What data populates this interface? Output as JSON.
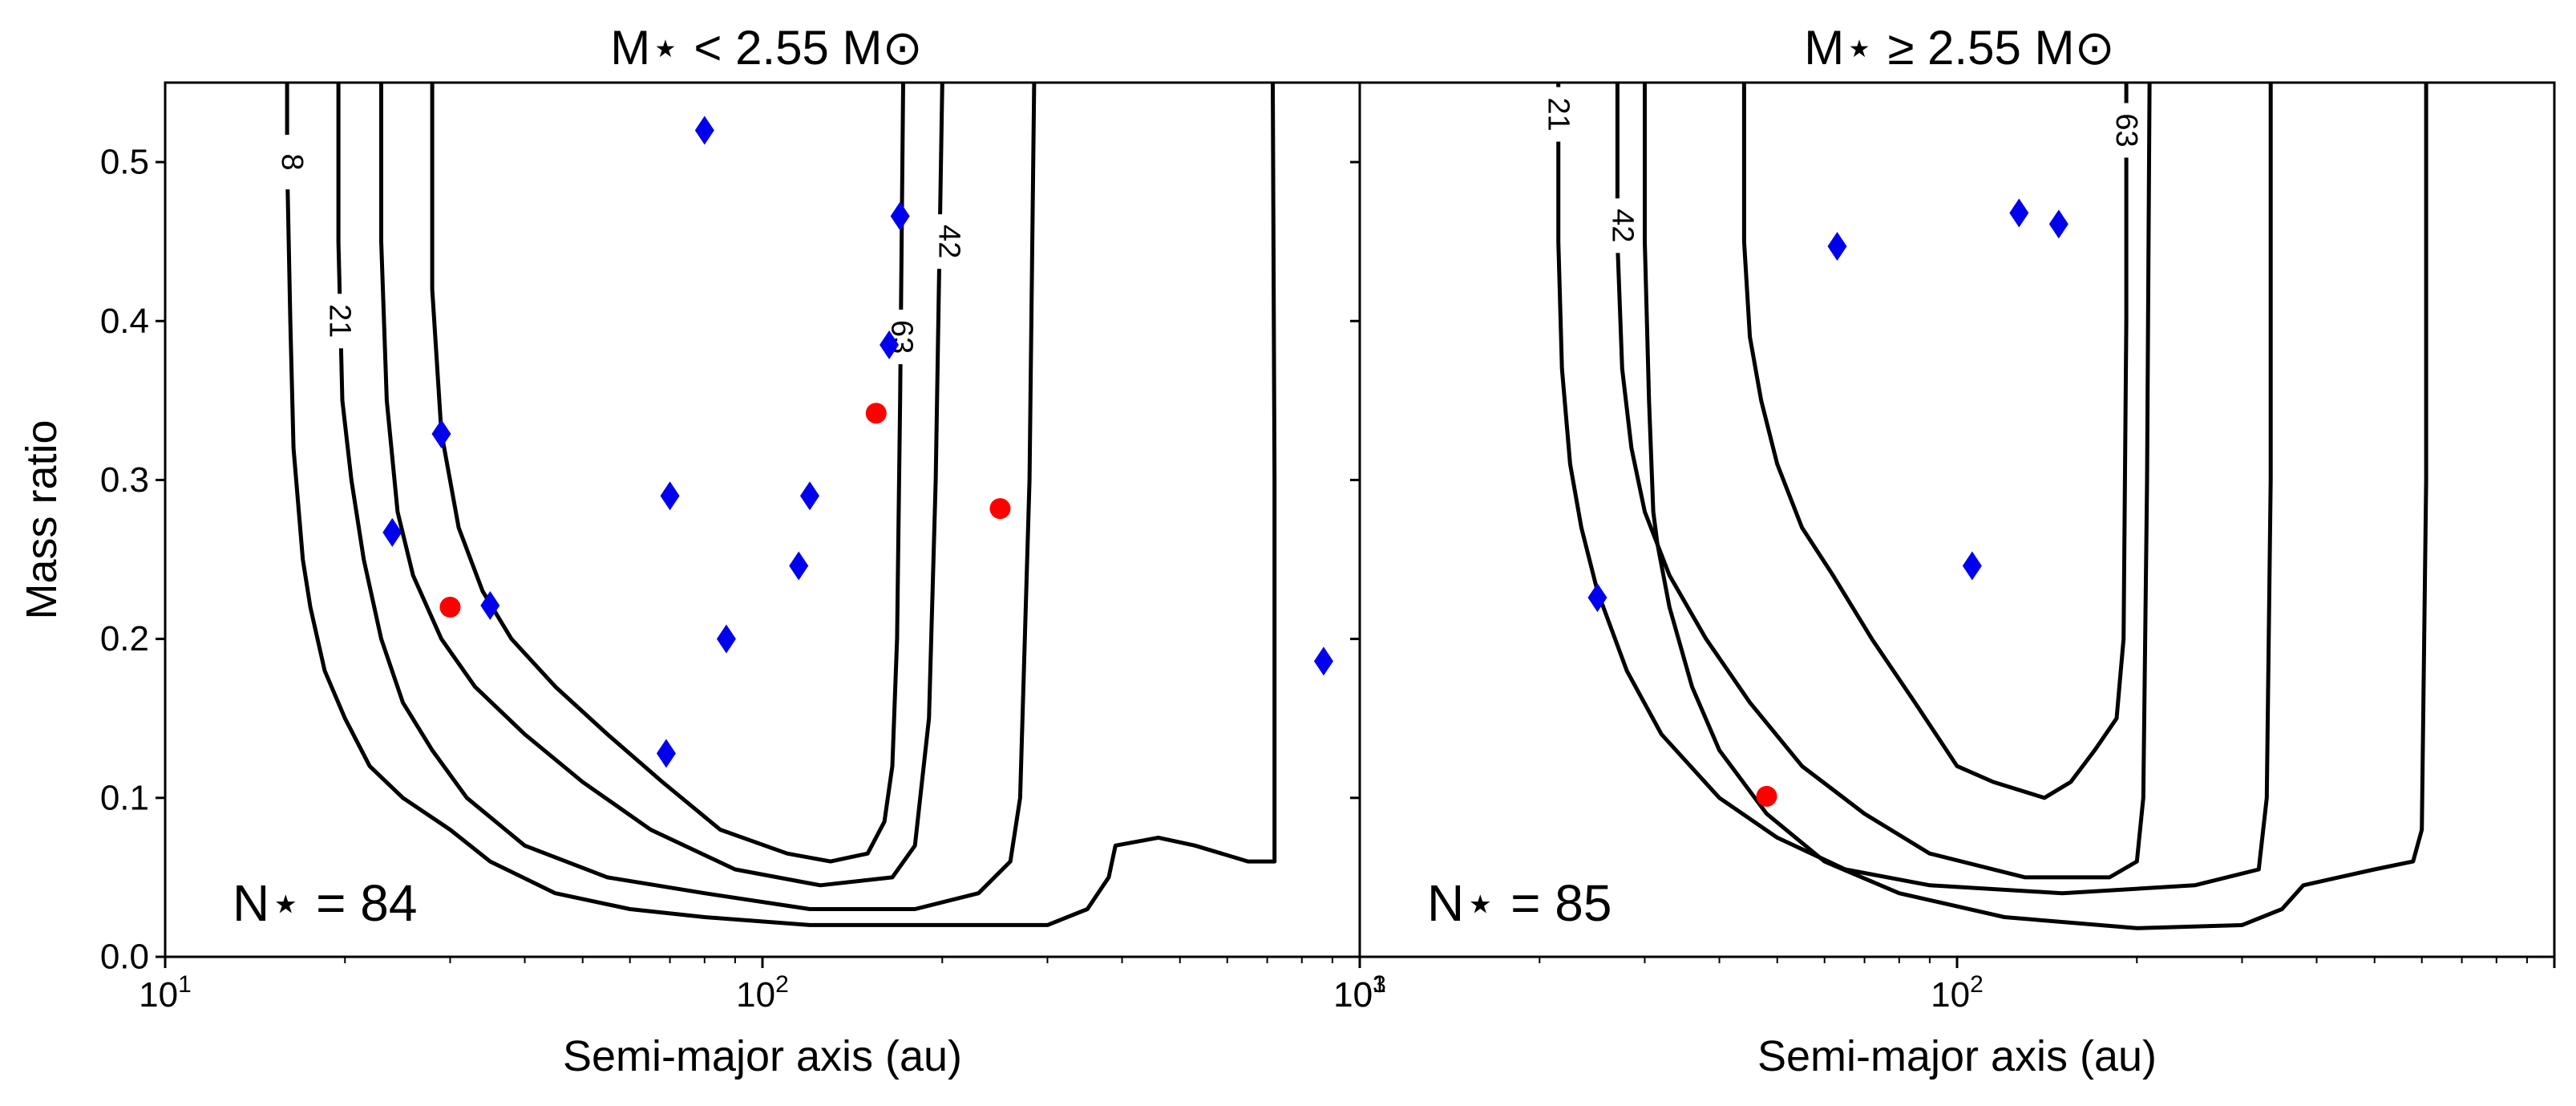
{
  "chart_data": [
    {
      "type": "scatter",
      "title": "M⋆ < 2.55 M⊙",
      "xlabel": "Semi-major axis (au)",
      "ylabel": "Mass ratio",
      "xscale": "log",
      "xlim": [
        10,
        1000
      ],
      "ylim": [
        0,
        0.55
      ],
      "xticks": [
        {
          "value": 10,
          "base": "10",
          "exp": "1"
        },
        {
          "value": 100,
          "base": "10",
          "exp": "2"
        },
        {
          "value": 1000,
          "base": "10",
          "exp": "3"
        }
      ],
      "yticks": [
        "0.0",
        "0.1",
        "0.2",
        "0.3",
        "0.4",
        "0.5"
      ],
      "annotation": "N⋆ = 84",
      "contour_labels": [
        "8",
        "21",
        "42",
        "63"
      ],
      "contours": [
        {
          "level": "8",
          "label_at": [
            16.3,
            0.5
          ],
          "points": [
            [
              16.0,
              0.55
            ],
            [
              16.0,
              0.5
            ],
            [
              16.2,
              0.4
            ],
            [
              16.4,
              0.32
            ],
            [
              17.0,
              0.25
            ],
            [
              17.5,
              0.22
            ],
            [
              18.5,
              0.18
            ],
            [
              20.0,
              0.15
            ],
            [
              22.0,
              0.12
            ],
            [
              25.0,
              0.1
            ],
            [
              30.0,
              0.08
            ],
            [
              35.0,
              0.06
            ],
            [
              45.0,
              0.04
            ],
            [
              60.0,
              0.03
            ],
            [
              80.0,
              0.025
            ],
            [
              120.0,
              0.02
            ],
            [
              200.0,
              0.02
            ],
            [
              300.0,
              0.02
            ],
            [
              350.0,
              0.03
            ],
            [
              380.0,
              0.05
            ],
            [
              390.0,
              0.07
            ],
            [
              460.0,
              0.075
            ],
            [
              530.0,
              0.07
            ],
            [
              650.0,
              0.06
            ],
            [
              720.0,
              0.06
            ],
            [
              720.0,
              0.3
            ],
            [
              715.0,
              0.55
            ]
          ]
        },
        {
          "level": "21",
          "label_at": [
            19.6,
            0.4
          ],
          "points": [
            [
              19.5,
              0.55
            ],
            [
              19.5,
              0.45
            ],
            [
              19.8,
              0.35
            ],
            [
              20.5,
              0.3
            ],
            [
              21.5,
              0.25
            ],
            [
              23.0,
              0.2
            ],
            [
              25.0,
              0.16
            ],
            [
              28.0,
              0.13
            ],
            [
              32.0,
              0.1
            ],
            [
              40.0,
              0.07
            ],
            [
              55.0,
              0.05
            ],
            [
              80.0,
              0.04
            ],
            [
              120.0,
              0.03
            ],
            [
              180.0,
              0.03
            ],
            [
              230.0,
              0.04
            ],
            [
              260.0,
              0.06
            ],
            [
              270.0,
              0.1
            ],
            [
              280.0,
              0.3
            ],
            [
              285.0,
              0.55
            ]
          ]
        },
        {
          "level": "42",
          "label_at": [
            205,
            0.45
          ],
          "points": [
            [
              23.0,
              0.55
            ],
            [
              23.0,
              0.45
            ],
            [
              23.5,
              0.35
            ],
            [
              24.5,
              0.28
            ],
            [
              26.0,
              0.24
            ],
            [
              29.0,
              0.2
            ],
            [
              33.0,
              0.17
            ],
            [
              40.0,
              0.14
            ],
            [
              50.0,
              0.11
            ],
            [
              65.0,
              0.08
            ],
            [
              90.0,
              0.055
            ],
            [
              125.0,
              0.045
            ],
            [
              165.0,
              0.05
            ],
            [
              180.0,
              0.07
            ],
            [
              190.0,
              0.15
            ],
            [
              195.0,
              0.3
            ],
            [
              200.0,
              0.55
            ]
          ]
        },
        {
          "level": "63",
          "label_at": [
            171,
            0.39
          ],
          "points": [
            [
              28.0,
              0.55
            ],
            [
              28.0,
              0.42
            ],
            [
              29.0,
              0.33
            ],
            [
              31.0,
              0.27
            ],
            [
              34.0,
              0.23
            ],
            [
              38.0,
              0.2
            ],
            [
              45.0,
              0.17
            ],
            [
              55.0,
              0.14
            ],
            [
              68.0,
              0.11
            ],
            [
              85.0,
              0.08
            ],
            [
              110.0,
              0.065
            ],
            [
              130.0,
              0.06
            ],
            [
              150.0,
              0.065
            ],
            [
              160.0,
              0.085
            ],
            [
              165.0,
              0.12
            ],
            [
              168.0,
              0.2
            ],
            [
              170.0,
              0.35
            ],
            [
              172.0,
              0.55
            ]
          ]
        }
      ],
      "series": [
        {
          "marker": "diamond",
          "color": "#0000ee",
          "points": [
            [
              80,
              0.52
            ],
            [
              170,
              0.466
            ],
            [
              163,
              0.385
            ],
            [
              29,
              0.329
            ],
            [
              24,
              0.267
            ],
            [
              70,
              0.29
            ],
            [
              120,
              0.29
            ],
            [
              115,
              0.246
            ],
            [
              35,
              0.221
            ],
            [
              87,
              0.2
            ],
            [
              69,
              0.128
            ],
            [
              870,
              0.186
            ]
          ]
        },
        {
          "marker": "circle",
          "color": "#ff0000",
          "points": [
            [
              155,
              0.342
            ],
            [
              250,
              0.282
            ],
            [
              30,
              0.22
            ]
          ]
        }
      ]
    },
    {
      "type": "scatter",
      "title": "M⋆ ≥ 2.55 M⊙",
      "xlabel": "Semi-major axis (au)",
      "xscale": "log",
      "xlim": [
        10,
        1000
      ],
      "ylim": [
        0,
        0.55
      ],
      "xticks": [
        {
          "value": 10,
          "base": "10",
          "exp": "1"
        },
        {
          "value": 100,
          "base": "10",
          "exp": "2"
        }
      ],
      "annotation": "N⋆ = 85",
      "contour_labels": [
        "21",
        "42",
        "63"
      ],
      "contours": [
        {
          "level": "8",
          "label_at": null,
          "points": [
            [
              30.0,
              0.55
            ],
            [
              30.0,
              0.45
            ],
            [
              30.5,
              0.35
            ],
            [
              31.0,
              0.28
            ],
            [
              31.5,
              0.26
            ],
            [
              33.0,
              0.22
            ],
            [
              36.0,
              0.17
            ],
            [
              40.0,
              0.13
            ],
            [
              48.0,
              0.09
            ],
            [
              60.0,
              0.06
            ],
            [
              80.0,
              0.04
            ],
            [
              120.0,
              0.025
            ],
            [
              200.0,
              0.018
            ],
            [
              300.0,
              0.02
            ],
            [
              350.0,
              0.03
            ],
            [
              380.0,
              0.045
            ],
            [
              500.0,
              0.055
            ],
            [
              580.0,
              0.06
            ],
            [
              600.0,
              0.08
            ],
            [
              610.0,
              0.3
            ],
            [
              610.0,
              0.55
            ]
          ]
        },
        {
          "level": "21",
          "label_at": [
            21.5,
            0.53
          ],
          "points": [
            [
              21.5,
              0.55
            ],
            [
              21.5,
              0.45
            ],
            [
              21.8,
              0.37
            ],
            [
              22.5,
              0.31
            ],
            [
              23.5,
              0.27
            ],
            [
              25.0,
              0.23
            ],
            [
              28.0,
              0.18
            ],
            [
              32.0,
              0.14
            ],
            [
              40.0,
              0.1
            ],
            [
              50.0,
              0.075
            ],
            [
              65.0,
              0.055
            ],
            [
              90.0,
              0.045
            ],
            [
              150.0,
              0.04
            ],
            [
              250.0,
              0.045
            ],
            [
              320.0,
              0.055
            ],
            [
              330.0,
              0.1
            ],
            [
              335.0,
              0.3
            ],
            [
              335.0,
              0.55
            ]
          ]
        },
        {
          "level": "42",
          "label_at": [
            27.5,
            0.46
          ],
          "points": [
            [
              27.0,
              0.55
            ],
            [
              27.0,
              0.45
            ],
            [
              27.5,
              0.37
            ],
            [
              28.5,
              0.32
            ],
            [
              30.0,
              0.28
            ],
            [
              33.0,
              0.24
            ],
            [
              38.0,
              0.2
            ],
            [
              45.0,
              0.16
            ],
            [
              55.0,
              0.12
            ],
            [
              70.0,
              0.09
            ],
            [
              90.0,
              0.065
            ],
            [
              130.0,
              0.05
            ],
            [
              180.0,
              0.05
            ],
            [
              200.0,
              0.06
            ],
            [
              205.0,
              0.1
            ],
            [
              208.0,
              0.3
            ],
            [
              210.0,
              0.55
            ]
          ]
        },
        {
          "level": "63",
          "label_at": [
            192,
            0.52
          ],
          "points": [
            [
              44.0,
              0.55
            ],
            [
              44.0,
              0.45
            ],
            [
              45.0,
              0.39
            ],
            [
              47.0,
              0.35
            ],
            [
              50.0,
              0.31
            ],
            [
              55.0,
              0.27
            ],
            [
              62.0,
              0.24
            ],
            [
              72.0,
              0.2
            ],
            [
              85.0,
              0.16
            ],
            [
              100.0,
              0.12
            ],
            [
              115.0,
              0.11
            ],
            [
              140.0,
              0.1
            ],
            [
              155.0,
              0.11
            ],
            [
              170.0,
              0.13
            ],
            [
              185.0,
              0.15
            ],
            [
              190.0,
              0.2
            ],
            [
              192.0,
              0.4
            ],
            [
              192.0,
              0.55
            ]
          ]
        }
      ],
      "series": [
        {
          "marker": "diamond",
          "color": "#0000ee",
          "points": [
            [
              63,
              0.447
            ],
            [
              127,
              0.468
            ],
            [
              148,
              0.461
            ],
            [
              106,
              0.246
            ],
            [
              25,
              0.226
            ]
          ]
        },
        {
          "marker": "circle",
          "color": "#ff0000",
          "points": [
            [
              48,
              0.101
            ]
          ]
        }
      ]
    }
  ]
}
